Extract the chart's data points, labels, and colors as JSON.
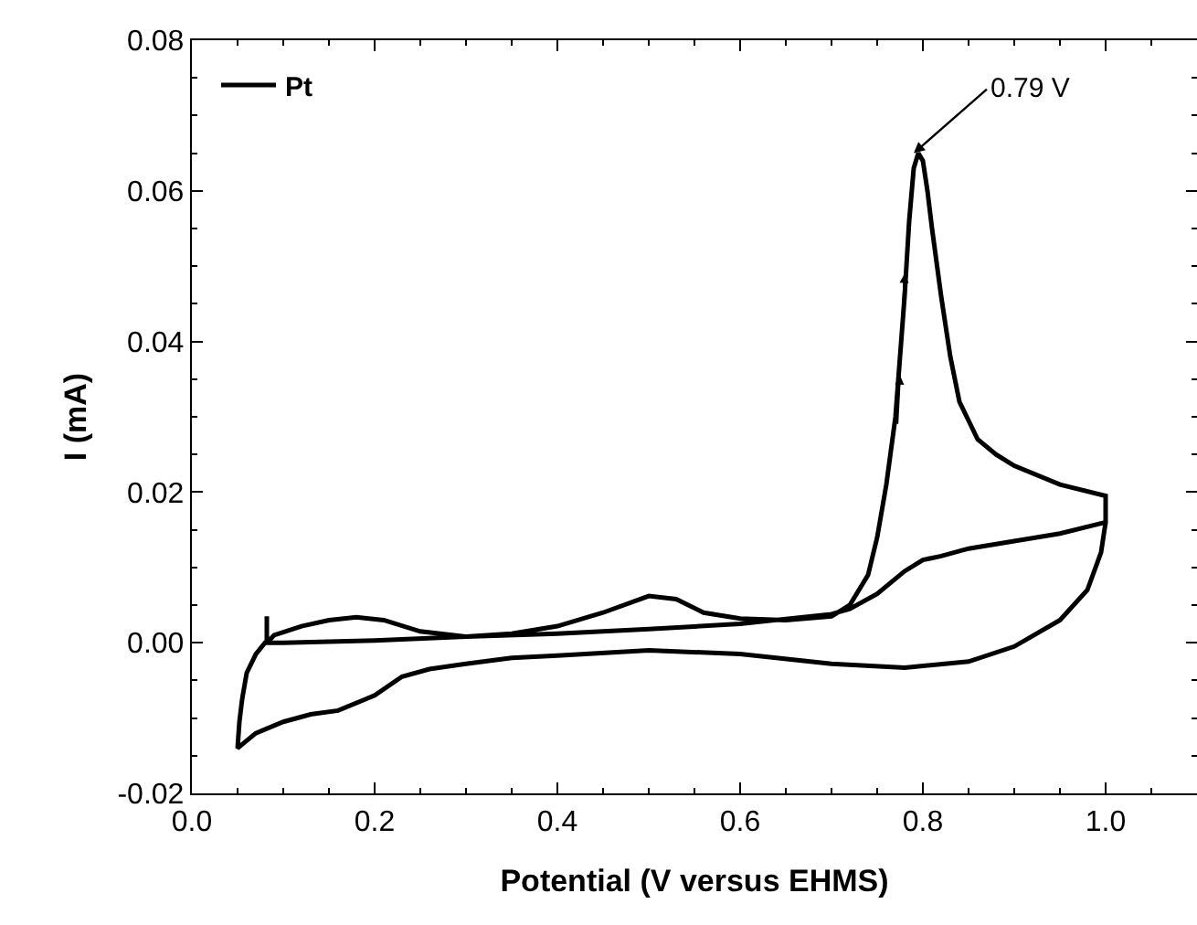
{
  "chart_data": {
    "type": "line",
    "xlabel": "Potential (V versus EHMS)",
    "ylabel": "I (mA)",
    "xlim": [
      0,
      1.1
    ],
    "ylim": [
      -0.02,
      0.08
    ],
    "xticks": [
      {
        "value": 0,
        "label": "0.0"
      },
      {
        "value": 0.2,
        "label": "0.2"
      },
      {
        "value": 0.4,
        "label": "0.4"
      },
      {
        "value": 0.6,
        "label": "0.6"
      },
      {
        "value": 0.8,
        "label": "0.8"
      },
      {
        "value": 1,
        "label": "1.0"
      }
    ],
    "yticks": [
      {
        "value": -0.02,
        "label": "-0.02"
      },
      {
        "value": 0,
        "label": "0.00"
      },
      {
        "value": 0.02,
        "label": "0.02"
      },
      {
        "value": 0.04,
        "label": "0.04"
      },
      {
        "value": 0.06,
        "label": "0.06"
      },
      {
        "value": 0.08,
        "label": "0.08"
      }
    ],
    "grid": false,
    "legend": "top left",
    "marker": "none",
    "line_style": "solid",
    "annotations": [
      {
        "text": "0.79 V",
        "x": 0.79,
        "y": 0.065
      }
    ],
    "series": [
      {
        "name": "Pt",
        "color": "#000000",
        "x": [
          0.082,
          0.082,
          0.09,
          0.12,
          0.15,
          0.18,
          0.21,
          0.25,
          0.3,
          0.35,
          0.4,
          0.45,
          0.5,
          0.53,
          0.56,
          0.6,
          0.65,
          0.7,
          0.72,
          0.74,
          0.75,
          0.76,
          0.77,
          0.775,
          0.78,
          0.785,
          0.79,
          0.795,
          0.8,
          0.805,
          0.81,
          0.82,
          0.83,
          0.84,
          0.86,
          0.88,
          0.9,
          0.95,
          1.0,
          1.0,
          0.95,
          0.9,
          0.85,
          0.82,
          0.8,
          0.78,
          0.75,
          0.72,
          0.7,
          0.6,
          0.5,
          0.4,
          0.3,
          0.2,
          0.1,
          0.08,
          0.07,
          0.06,
          0.055,
          0.052,
          0.05,
          0.055,
          0.07,
          0.1,
          0.13,
          0.16,
          0.2,
          0.23,
          0.26,
          0.3,
          0.35,
          0.4,
          0.5,
          0.6,
          0.7,
          0.78,
          0.85,
          0.9,
          0.95,
          0.98,
          0.995,
          1.0
        ],
        "values": [
          0.0035,
          0.0,
          0.001,
          0.0022,
          0.003,
          0.0034,
          0.003,
          0.0015,
          0.0008,
          0.0012,
          0.0022,
          0.004,
          0.0062,
          0.0058,
          0.004,
          0.0032,
          0.003,
          0.0035,
          0.005,
          0.009,
          0.014,
          0.021,
          0.03,
          0.038,
          0.046,
          0.056,
          0.063,
          0.065,
          0.064,
          0.06,
          0.055,
          0.046,
          0.038,
          0.032,
          0.027,
          0.025,
          0.0235,
          0.021,
          0.0195,
          0.016,
          0.0145,
          0.0135,
          0.0125,
          0.0115,
          0.011,
          0.0095,
          0.0065,
          0.0045,
          0.0038,
          0.0025,
          0.0018,
          0.0012,
          0.0008,
          0.0003,
          0.0,
          0.0,
          -0.0015,
          -0.004,
          -0.0075,
          -0.0105,
          -0.014,
          -0.0135,
          -0.012,
          -0.0105,
          -0.0095,
          -0.009,
          -0.007,
          -0.0045,
          -0.0035,
          -0.0028,
          -0.002,
          -0.0017,
          -0.001,
          -0.0015,
          -0.0028,
          -0.0033,
          -0.0025,
          -0.0005,
          0.003,
          0.007,
          0.012,
          0.016
        ]
      }
    ]
  }
}
